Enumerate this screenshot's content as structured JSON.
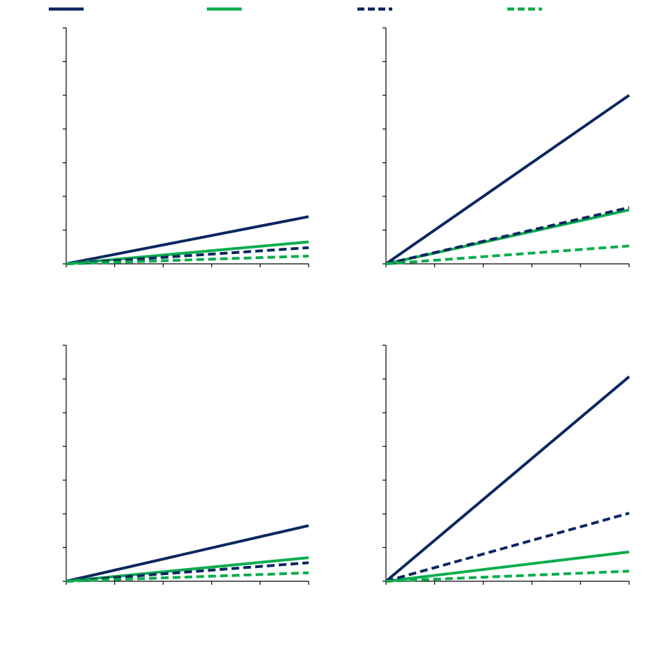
{
  "colors": {
    "navy": "#0b2660",
    "green": "#0aad4d",
    "axis": "#000000",
    "background": "#ffffff"
  },
  "legend": {
    "placement": "top",
    "entries": [
      {
        "label": "",
        "color": "#0b2660",
        "dashed": false
      },
      {
        "label": "",
        "color": "#0aad4d",
        "dashed": false
      },
      {
        "label": "",
        "color": "#0b2660",
        "dashed": true
      },
      {
        "label": "",
        "color": "#0aad4d",
        "dashed": true
      }
    ]
  },
  "chart_data": [
    {
      "type": "line",
      "panel": "top-left",
      "title": "",
      "xlabel": "",
      "ylabel": "",
      "xlim": [
        0,
        5
      ],
      "ylim": [
        0,
        7
      ],
      "xticks": [
        0,
        1,
        2,
        3,
        4,
        5
      ],
      "yticks": [
        0,
        1,
        2,
        3,
        4,
        5,
        6,
        7
      ],
      "grid": false,
      "x": [
        0,
        5
      ],
      "series": [
        {
          "values": [
            0,
            1.4
          ],
          "color": "#0b2660",
          "dashed": false
        },
        {
          "values": [
            0,
            0.65
          ],
          "color": "#0aad4d",
          "dashed": false
        },
        {
          "values": [
            0,
            0.48
          ],
          "color": "#0b2660",
          "dashed": true
        },
        {
          "values": [
            0,
            0.23
          ],
          "color": "#0aad4d",
          "dashed": true
        }
      ]
    },
    {
      "type": "line",
      "panel": "top-right",
      "title": "",
      "xlabel": "",
      "ylabel": "",
      "xlim": [
        0,
        5
      ],
      "ylim": [
        0,
        7
      ],
      "xticks": [
        0,
        1,
        2,
        3,
        4,
        5
      ],
      "yticks": [
        0,
        1,
        2,
        3,
        4,
        5,
        6,
        7
      ],
      "grid": false,
      "x": [
        0,
        5
      ],
      "series": [
        {
          "values": [
            0,
            5.0
          ],
          "color": "#0b2660",
          "dashed": false
        },
        {
          "values": [
            0,
            1.6
          ],
          "color": "#0aad4d",
          "dashed": false
        },
        {
          "values": [
            0,
            1.67
          ],
          "color": "#0b2660",
          "dashed": true
        },
        {
          "values": [
            0,
            0.53
          ],
          "color": "#0aad4d",
          "dashed": true
        }
      ]
    },
    {
      "type": "line",
      "panel": "bottom-left",
      "title": "",
      "xlabel": "",
      "ylabel": "",
      "xlim": [
        0,
        5
      ],
      "ylim": [
        0,
        7
      ],
      "xticks": [
        0,
        1,
        2,
        3,
        4,
        5
      ],
      "yticks": [
        0,
        1,
        2,
        3,
        4,
        5,
        6,
        7
      ],
      "grid": false,
      "x": [
        0,
        5
      ],
      "series": [
        {
          "values": [
            0,
            1.65
          ],
          "color": "#0b2660",
          "dashed": false
        },
        {
          "values": [
            0,
            0.7
          ],
          "color": "#0aad4d",
          "dashed": false
        },
        {
          "values": [
            0,
            0.55
          ],
          "color": "#0b2660",
          "dashed": true
        },
        {
          "values": [
            0,
            0.25
          ],
          "color": "#0aad4d",
          "dashed": true
        }
      ]
    },
    {
      "type": "line",
      "panel": "bottom-right",
      "title": "",
      "xlabel": "",
      "ylabel": "",
      "xlim": [
        0,
        5
      ],
      "ylim": [
        0,
        7
      ],
      "xticks": [
        0,
        1,
        2,
        3,
        4,
        5
      ],
      "yticks": [
        0,
        1,
        2,
        3,
        4,
        5,
        6,
        7
      ],
      "grid": false,
      "x": [
        0,
        5
      ],
      "series": [
        {
          "values": [
            0,
            6.07
          ],
          "color": "#0b2660",
          "dashed": false
        },
        {
          "values": [
            0,
            0.87
          ],
          "color": "#0aad4d",
          "dashed": false
        },
        {
          "values": [
            0,
            2.02
          ],
          "color": "#0b2660",
          "dashed": true
        },
        {
          "values": [
            0,
            0.3
          ],
          "color": "#0aad4d",
          "dashed": true
        }
      ]
    }
  ]
}
